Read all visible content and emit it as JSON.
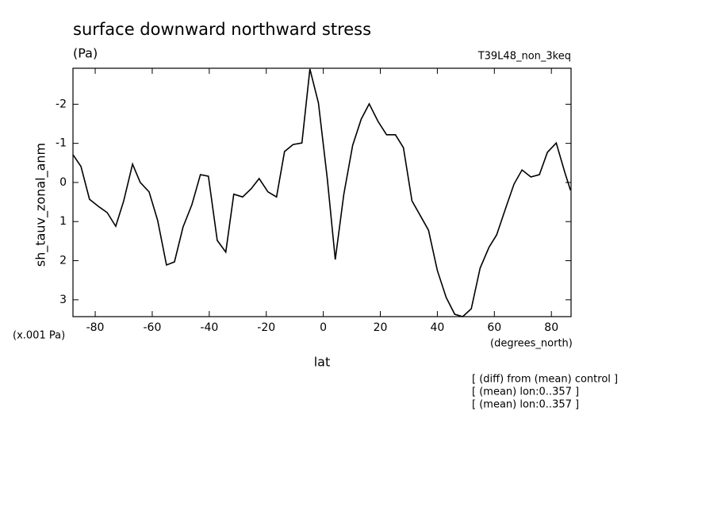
{
  "chart_data": {
    "type": "line",
    "title": "surface downward northward stress",
    "units": "(Pa)",
    "experiment": "T39L48_non_3keq",
    "y_label": "sh_tauv_zonal_anm",
    "y_scale_note": "(x.001 Pa)",
    "x_label": "lat",
    "x_units": "(degrees_north)",
    "notes": [
      "[ (diff) from (mean) control ]",
      "[ (mean) lon:0..357 ]",
      "[ (mean) lon:0..357 ]"
    ],
    "x": [
      -87.8,
      -85,
      -82,
      -78.9,
      -75.8,
      -72.8,
      -70,
      -66.9,
      -64.2,
      -61.1,
      -58.1,
      -55,
      -52.2,
      -49.2,
      -46.1,
      -43.1,
      -40.3,
      -37.2,
      -34.2,
      -31.4,
      -28.3,
      -25.3,
      -22.5,
      -19.4,
      -16.4,
      -13.6,
      -10.6,
      -7.5,
      -4.7,
      -1.7,
      1.4,
      4.2,
      7.2,
      10.3,
      13.3,
      16.1,
      19.2,
      22.2,
      25.3,
      28.1,
      31.1,
      34.2,
      36.9,
      40,
      43.1,
      46.1,
      48.9,
      51.9,
      55,
      58.1,
      60.8,
      63.9,
      66.9,
      69.7,
      72.8,
      75.8,
      78.6,
      81.7,
      84.7,
      86.7
    ],
    "series": [
      {
        "color": "#000000",
        "values": [
          -0.71,
          -0.41,
          0.43,
          0.61,
          0.77,
          1.12,
          0.47,
          -0.47,
          0,
          0.24,
          0.97,
          2.11,
          2.03,
          1.14,
          0.57,
          -0.2,
          -0.16,
          1.48,
          1.78,
          0.3,
          0.37,
          0.16,
          -0.1,
          0.24,
          0.37,
          -0.79,
          -0.97,
          -1.01,
          -2.9,
          -2.03,
          -0.1,
          1.97,
          0.3,
          -0.95,
          -1.62,
          -2.01,
          -1.56,
          -1.22,
          -1.22,
          -0.89,
          0.47,
          0.87,
          1.22,
          2.25,
          2.94,
          3.37,
          3.43,
          3.23,
          2.19,
          1.66,
          1.34,
          0.67,
          0.04,
          -0.32,
          -0.14,
          -0.2,
          -0.77,
          -1.01,
          -0.26,
          0.2
        ]
      }
    ],
    "xlim": [
      -87.8,
      86.9
    ],
    "xticks": [
      -80,
      -60,
      -40,
      -20,
      0,
      20,
      40,
      60,
      80
    ],
    "ylim": [
      -2.92,
      3.43
    ],
    "yticks": [
      -2,
      -1,
      0,
      1,
      2,
      3
    ],
    "y_inverted": true
  }
}
